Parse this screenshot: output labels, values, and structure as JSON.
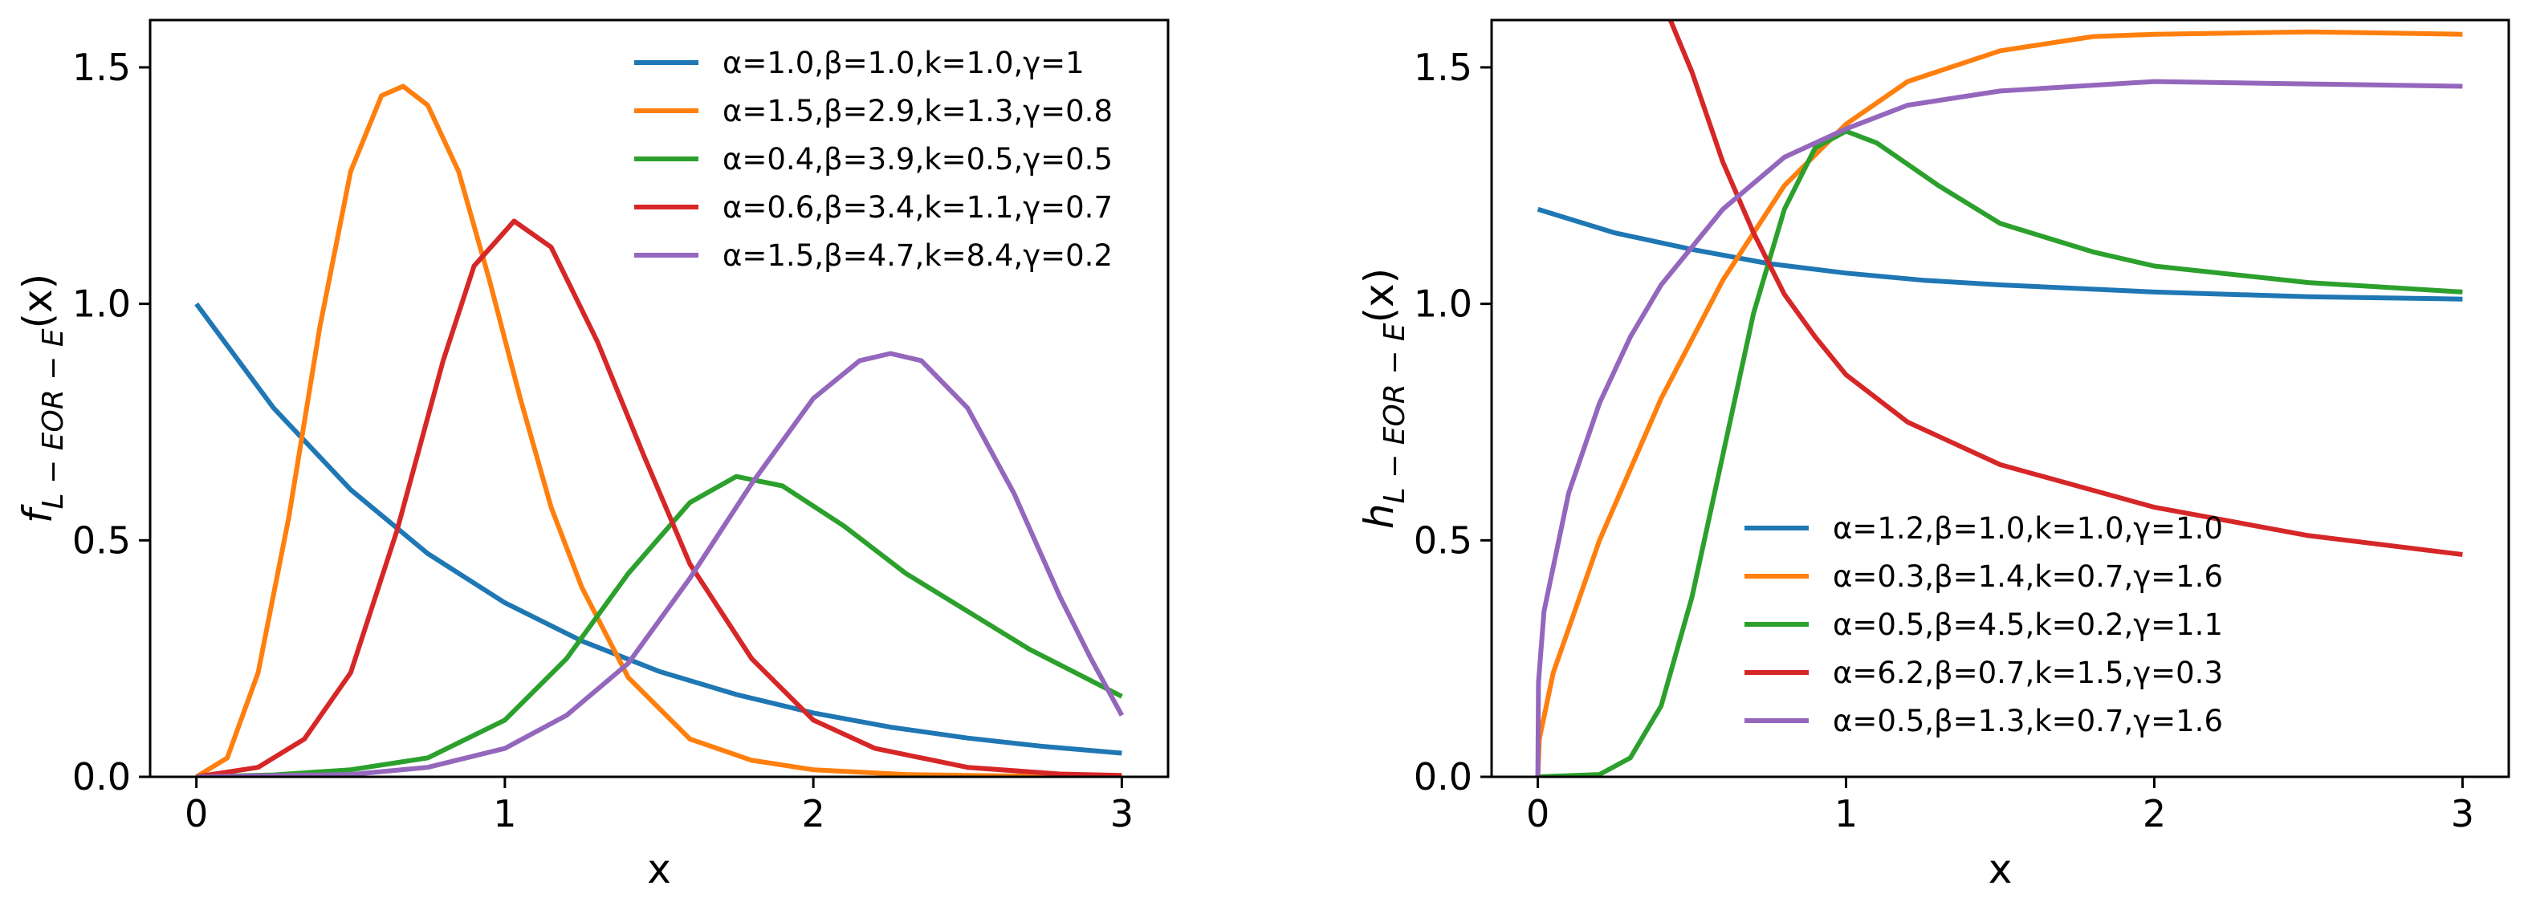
{
  "chart_data": [
    {
      "type": "line",
      "title": "",
      "xlabel": "x",
      "ylabel": {
        "base": "f",
        "subscript": "L − EOR − E",
        "suffix": "(x)"
      },
      "xlim": [
        -0.15,
        3.15
      ],
      "ylim": [
        0,
        1.6
      ],
      "xticks": [
        0,
        1,
        2,
        3
      ],
      "xtick_labels": [
        "0",
        "1",
        "2",
        "3"
      ],
      "yticks": [
        0.0,
        0.5,
        1.0,
        1.5
      ],
      "ytick_labels": [
        "0.0",
        "0.5",
        "1.0",
        "1.5"
      ],
      "grid": false,
      "legend_position": "top-right",
      "series": [
        {
          "name": "α=1.0,β=1.0,k=1.0,γ=1",
          "color": "#1f77b4",
          "x": [
            0,
            0.25,
            0.5,
            0.75,
            1.0,
            1.25,
            1.5,
            1.75,
            2.0,
            2.25,
            2.5,
            2.75,
            3.0
          ],
          "y": [
            1.0,
            0.78,
            0.607,
            0.472,
            0.368,
            0.287,
            0.223,
            0.174,
            0.135,
            0.105,
            0.082,
            0.064,
            0.05
          ]
        },
        {
          "name": "α=1.5,β=2.9,k=1.3,γ=0.8",
          "color": "#ff7f0e",
          "x": [
            0,
            0.1,
            0.2,
            0.3,
            0.4,
            0.5,
            0.6,
            0.67,
            0.75,
            0.85,
            0.95,
            1.05,
            1.15,
            1.25,
            1.4,
            1.6,
            1.8,
            2.0,
            2.3,
            2.6,
            3.0
          ],
          "y": [
            0,
            0.04,
            0.22,
            0.55,
            0.95,
            1.28,
            1.44,
            1.46,
            1.42,
            1.28,
            1.05,
            0.8,
            0.57,
            0.4,
            0.21,
            0.08,
            0.035,
            0.015,
            0.005,
            0.002,
            0
          ]
        },
        {
          "name": "α=0.4,β=3.9,k=0.5,γ=0.5",
          "color": "#2ca02c",
          "x": [
            0,
            0.25,
            0.5,
            0.75,
            1.0,
            1.2,
            1.4,
            1.6,
            1.75,
            1.9,
            2.1,
            2.3,
            2.5,
            2.7,
            2.85,
            3.0
          ],
          "y": [
            0,
            0.004,
            0.015,
            0.04,
            0.12,
            0.25,
            0.43,
            0.58,
            0.635,
            0.615,
            0.53,
            0.43,
            0.35,
            0.27,
            0.22,
            0.17
          ]
        },
        {
          "name": "α=0.6,β=3.4,k=1.1,γ=0.7",
          "color": "#d62728",
          "x": [
            0,
            0.2,
            0.35,
            0.5,
            0.65,
            0.8,
            0.9,
            1.03,
            1.15,
            1.3,
            1.45,
            1.6,
            1.8,
            2.0,
            2.2,
            2.5,
            2.8,
            3.0
          ],
          "y": [
            0,
            0.02,
            0.08,
            0.22,
            0.52,
            0.88,
            1.08,
            1.175,
            1.12,
            0.92,
            0.68,
            0.45,
            0.25,
            0.12,
            0.06,
            0.02,
            0.006,
            0.003
          ]
        },
        {
          "name": "α=1.5,β=4.7,k=8.4,γ=0.2",
          "color": "#9467bd",
          "x": [
            0,
            0.5,
            0.75,
            1.0,
            1.2,
            1.4,
            1.6,
            1.8,
            2.0,
            2.15,
            2.25,
            2.35,
            2.5,
            2.65,
            2.8,
            2.9,
            3.0
          ],
          "y": [
            0,
            0.005,
            0.02,
            0.06,
            0.13,
            0.24,
            0.42,
            0.62,
            0.8,
            0.88,
            0.895,
            0.88,
            0.78,
            0.6,
            0.38,
            0.25,
            0.13
          ]
        }
      ]
    },
    {
      "type": "line",
      "title": "",
      "xlabel": "x",
      "ylabel": {
        "base": "h",
        "subscript": "L − EOR − E",
        "suffix": "(x)"
      },
      "xlim": [
        -0.15,
        3.15
      ],
      "ylim": [
        0,
        1.6
      ],
      "xticks": [
        0,
        1,
        2,
        3
      ],
      "xtick_labels": [
        "0",
        "1",
        "2",
        "3"
      ],
      "yticks": [
        0.0,
        0.5,
        1.0,
        1.5
      ],
      "ytick_labels": [
        "0.0",
        "0.5",
        "1.0",
        "1.5"
      ],
      "grid": false,
      "legend_position": "lower-right",
      "series": [
        {
          "name": "α=1.2,β=1.0,k=1.0,γ=1.0",
          "color": "#1f77b4",
          "x": [
            0,
            0.25,
            0.5,
            0.75,
            1.0,
            1.25,
            1.5,
            2.0,
            2.5,
            3.0
          ],
          "y": [
            1.2,
            1.15,
            1.115,
            1.085,
            1.065,
            1.05,
            1.04,
            1.025,
            1.015,
            1.01
          ]
        },
        {
          "name": "α=0.3,β=1.4,k=0.7,γ=1.6",
          "color": "#ff7f0e",
          "x": [
            0,
            0.005,
            0.05,
            0.2,
            0.4,
            0.6,
            0.8,
            1.0,
            1.2,
            1.5,
            1.8,
            2.0,
            2.5,
            3.0
          ],
          "y": [
            0,
            0.08,
            0.22,
            0.5,
            0.8,
            1.05,
            1.25,
            1.38,
            1.47,
            1.535,
            1.565,
            1.57,
            1.575,
            1.57
          ]
        },
        {
          "name": "α=0.5,β=4.5,k=0.2,γ=1.1",
          "color": "#2ca02c",
          "x": [
            0,
            0.2,
            0.3,
            0.4,
            0.5,
            0.6,
            0.7,
            0.8,
            0.9,
            1.0,
            1.1,
            1.3,
            1.5,
            1.8,
            2.0,
            2.5,
            3.0
          ],
          "y": [
            0,
            0.005,
            0.04,
            0.15,
            0.38,
            0.68,
            0.98,
            1.2,
            1.33,
            1.365,
            1.34,
            1.25,
            1.17,
            1.11,
            1.08,
            1.045,
            1.025
          ]
        },
        {
          "name": "α=6.2,β=0.7,k=1.5,γ=0.3",
          "color": "#d62728",
          "x": [
            0.43,
            0.5,
            0.6,
            0.7,
            0.8,
            0.9,
            1.0,
            1.2,
            1.5,
            2.0,
            2.5,
            3.0
          ],
          "y": [
            1.6,
            1.49,
            1.3,
            1.15,
            1.02,
            0.93,
            0.85,
            0.75,
            0.66,
            0.57,
            0.51,
            0.47
          ]
        },
        {
          "name": "α=0.5,β=1.3,k=0.7,γ=1.6",
          "color": "#9467bd",
          "x": [
            0,
            0.002,
            0.02,
            0.1,
            0.2,
            0.3,
            0.4,
            0.6,
            0.8,
            1.0,
            1.2,
            1.5,
            2.0,
            2.5,
            3.0
          ],
          "y": [
            0,
            0.2,
            0.35,
            0.6,
            0.79,
            0.93,
            1.04,
            1.2,
            1.31,
            1.37,
            1.42,
            1.45,
            1.47,
            1.465,
            1.46
          ]
        }
      ]
    }
  ]
}
